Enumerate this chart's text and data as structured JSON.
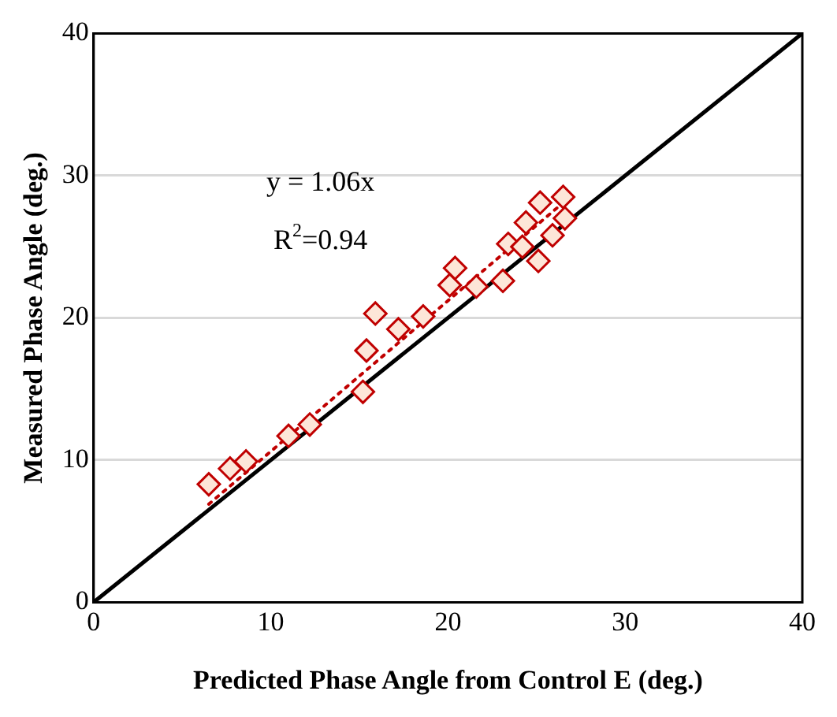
{
  "chart_data": {
    "type": "scatter",
    "xlabel": "Predicted Phase Angle from Control E (deg.)",
    "ylabel": "Measured Phase Angle (deg.)",
    "xlim": [
      0,
      40
    ],
    "ylim": [
      0,
      40
    ],
    "xticks": [
      0,
      10,
      20,
      30,
      40
    ],
    "yticks": [
      0,
      10,
      20,
      30,
      40
    ],
    "grid": "y",
    "legend": false,
    "annotations": [
      "y = 1.06x",
      "R$^{2}$=0.94"
    ],
    "series": [
      {
        "color": "#c00000",
        "marker": "diamond",
        "x": [
          6.5,
          7.7,
          8.6,
          11.0,
          12.2,
          15.2,
          15.4,
          15.9,
          17.2,
          18.6,
          20.1,
          20.4,
          21.6,
          23.1,
          23.4,
          24.2,
          24.4,
          25.1,
          25.2,
          25.9,
          26.0,
          26.3,
          26.5,
          26.6
        ],
        "values": [
          8.3,
          9.4,
          9.9,
          11.7,
          12.5,
          14.8,
          17.7,
          20.3,
          19.2,
          20.1,
          22.3,
          23.5,
          22.2,
          22.6,
          25.2,
          25.0,
          26.7,
          24.0,
          28.1,
          25.8,
          null,
          null,
          28.5,
          27.0
        ]
      },
      {
        "type": "line",
        "marker": "none",
        "color": "#c00000",
        "line_style": "dotted",
        "x": [
          6.5,
          26.6
        ],
        "values": [
          6.9,
          28.2
        ]
      },
      {
        "type": "line",
        "marker": "none",
        "color": "#000000",
        "line_style": "solid",
        "x": [
          0,
          40
        ],
        "values": [
          0,
          40
        ]
      }
    ]
  }
}
